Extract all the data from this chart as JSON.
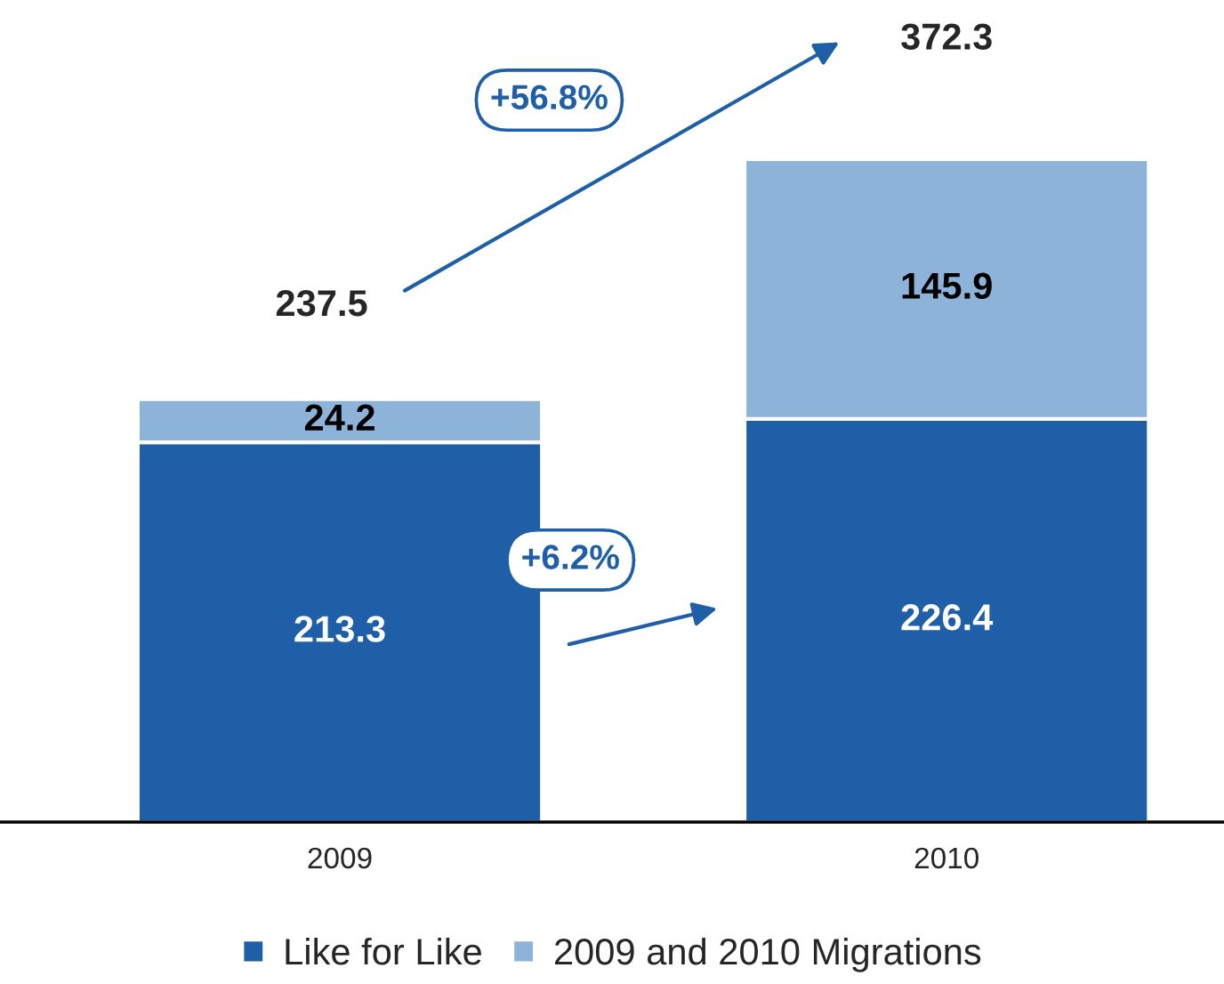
{
  "chart_data": {
    "type": "bar",
    "stacked": true,
    "categories": [
      "2009",
      "2010"
    ],
    "series": [
      {
        "name": "Like for Like",
        "color": "#1f5fa8",
        "values": [
          213.3,
          226.4
        ]
      },
      {
        "name": "2009 and 2010 Migrations",
        "color": "#8db3d8",
        "values": [
          24.2,
          145.9
        ]
      }
    ],
    "totals": [
      "237.5",
      "372.3"
    ],
    "annotations": [
      "+56.8%",
      "+6.2%"
    ],
    "data_labels": true,
    "legend": "bottom",
    "grid": false
  }
}
